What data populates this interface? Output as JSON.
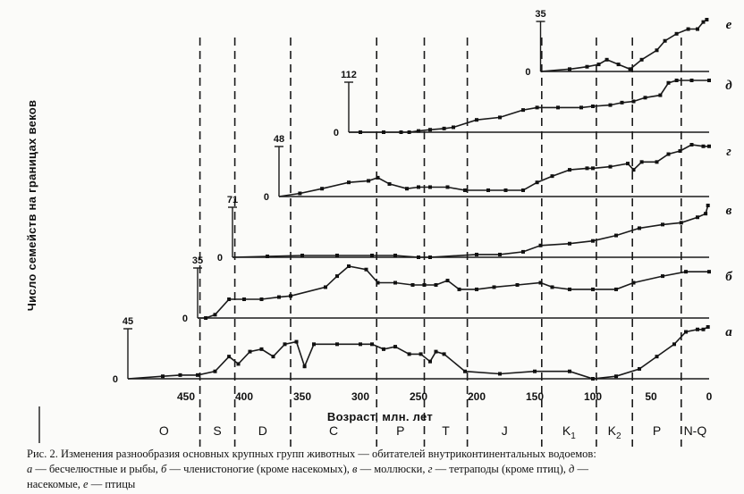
{
  "chart_data": {
    "type": "line",
    "xlabel": "Возраст, млн. лет",
    "ylabel": "Число семейств на границах веков",
    "xlim": [
      500,
      0
    ],
    "x_ticks": [
      450,
      400,
      350,
      300,
      250,
      200,
      150,
      100,
      50,
      0
    ],
    "x_tick_labels": [
      "450",
      "400",
      "350",
      "300",
      "250",
      "200",
      "150",
      "100",
      "50",
      "0"
    ],
    "periods": [
      {
        "label": "O",
        "sub": "",
        "start": 500,
        "end": 438
      },
      {
        "label": "S",
        "sub": "",
        "start": 438,
        "end": 408
      },
      {
        "label": "D",
        "sub": "",
        "start": 408,
        "end": 360
      },
      {
        "label": "C",
        "sub": "",
        "start": 360,
        "end": 286
      },
      {
        "label": "P",
        "sub": "",
        "start": 286,
        "end": 245
      },
      {
        "label": "T",
        "sub": "",
        "start": 245,
        "end": 208
      },
      {
        "label": "J",
        "sub": "",
        "start": 208,
        "end": 144
      },
      {
        "label": "K",
        "sub": "1",
        "start": 144,
        "end": 97
      },
      {
        "label": "K",
        "sub": "2",
        "start": 97,
        "end": 66
      },
      {
        "label": "P",
        "sub": "",
        "start": 66,
        "end": 24
      },
      {
        "label": "N-Q",
        "sub": "",
        "start": 24,
        "end": 0
      }
    ],
    "boundaries": [
      438,
      408,
      360,
      286,
      245,
      208,
      144,
      97,
      66,
      24
    ],
    "series": [
      {
        "letter": "а",
        "max": 45,
        "zero": "0",
        "points": [
          [
            500,
            0
          ],
          [
            470,
            2
          ],
          [
            455,
            3
          ],
          [
            440,
            3
          ],
          [
            425,
            6
          ],
          [
            413,
            18
          ],
          [
            405,
            12
          ],
          [
            395,
            22
          ],
          [
            385,
            24
          ],
          [
            375,
            18
          ],
          [
            365,
            28
          ],
          [
            355,
            30
          ],
          [
            348,
            10
          ],
          [
            340,
            28
          ],
          [
            320,
            28
          ],
          [
            300,
            28
          ],
          [
            290,
            28
          ],
          [
            280,
            24
          ],
          [
            270,
            26
          ],
          [
            258,
            20
          ],
          [
            248,
            20
          ],
          [
            240,
            14
          ],
          [
            235,
            22
          ],
          [
            228,
            20
          ],
          [
            210,
            6
          ],
          [
            180,
            4
          ],
          [
            150,
            6
          ],
          [
            120,
            6
          ],
          [
            100,
            0
          ],
          [
            80,
            2
          ],
          [
            60,
            8
          ],
          [
            45,
            18
          ],
          [
            30,
            28
          ],
          [
            20,
            38
          ],
          [
            10,
            40
          ],
          [
            5,
            40
          ],
          [
            1,
            42
          ]
        ]
      },
      {
        "letter": "б",
        "max": 35,
        "zero": "0",
        "points": [
          [
            440,
            0
          ],
          [
            433,
            0
          ],
          [
            425,
            3
          ],
          [
            413,
            17
          ],
          [
            400,
            17
          ],
          [
            385,
            17
          ],
          [
            370,
            19
          ],
          [
            360,
            20
          ],
          [
            330,
            28
          ],
          [
            320,
            38
          ],
          [
            310,
            47
          ],
          [
            295,
            44
          ],
          [
            285,
            32
          ],
          [
            270,
            32
          ],
          [
            255,
            30
          ],
          [
            245,
            30
          ],
          [
            235,
            30
          ],
          [
            225,
            34
          ],
          [
            215,
            26
          ],
          [
            200,
            26
          ],
          [
            185,
            28
          ],
          [
            165,
            30
          ],
          [
            145,
            32
          ],
          [
            135,
            28
          ],
          [
            120,
            26
          ],
          [
            100,
            26
          ],
          [
            80,
            26
          ],
          [
            65,
            32
          ],
          [
            40,
            38
          ],
          [
            20,
            42
          ],
          [
            0,
            42
          ]
        ]
      },
      {
        "letter": "в",
        "max": 71,
        "zero": "0",
        "points": [
          [
            410,
            0
          ],
          [
            380,
            1
          ],
          [
            350,
            2
          ],
          [
            320,
            2
          ],
          [
            290,
            2
          ],
          [
            270,
            2
          ],
          [
            250,
            0
          ],
          [
            240,
            0
          ],
          [
            200,
            3
          ],
          [
            180,
            3
          ],
          [
            160,
            6
          ],
          [
            145,
            13
          ],
          [
            120,
            15
          ],
          [
            100,
            18
          ],
          [
            80,
            24
          ],
          [
            60,
            32
          ],
          [
            40,
            36
          ],
          [
            24,
            38
          ],
          [
            10,
            44
          ],
          [
            3,
            48
          ],
          [
            1,
            57
          ]
        ]
      },
      {
        "letter": "г",
        "max": 48,
        "zero": "0",
        "points": [
          [
            370,
            0
          ],
          [
            352,
            2
          ],
          [
            333,
            5
          ],
          [
            310,
            9
          ],
          [
            293,
            10
          ],
          [
            285,
            12
          ],
          [
            275,
            8
          ],
          [
            260,
            5
          ],
          [
            250,
            6
          ],
          [
            240,
            6
          ],
          [
            225,
            6
          ],
          [
            210,
            4
          ],
          [
            190,
            4
          ],
          [
            175,
            4
          ],
          [
            160,
            4
          ],
          [
            148,
            9
          ],
          [
            135,
            13
          ],
          [
            120,
            17
          ],
          [
            105,
            18
          ],
          [
            100,
            18
          ],
          [
            85,
            19
          ],
          [
            70,
            21
          ],
          [
            65,
            17
          ],
          [
            58,
            22
          ],
          [
            45,
            22
          ],
          [
            35,
            27
          ],
          [
            25,
            29
          ],
          [
            15,
            33
          ],
          [
            5,
            32
          ],
          [
            0,
            32
          ]
        ]
      },
      {
        "letter": "д",
        "max": 112,
        "zero": "0",
        "points": [
          [
            310,
            0
          ],
          [
            300,
            0
          ],
          [
            280,
            0
          ],
          [
            265,
            0
          ],
          [
            258,
            0
          ],
          [
            250,
            1
          ],
          [
            240,
            2
          ],
          [
            228,
            3
          ],
          [
            220,
            4
          ],
          [
            200,
            10
          ],
          [
            180,
            12
          ],
          [
            160,
            18
          ],
          [
            148,
            20
          ],
          [
            130,
            20
          ],
          [
            110,
            20
          ],
          [
            100,
            21
          ],
          [
            85,
            22
          ],
          [
            75,
            24
          ],
          [
            65,
            25
          ],
          [
            55,
            28
          ],
          [
            42,
            30
          ],
          [
            35,
            40
          ],
          [
            28,
            42
          ],
          [
            15,
            42
          ],
          [
            0,
            42
          ]
        ]
      },
      {
        "letter": "е",
        "max": 35,
        "zero": "0",
        "points": [
          [
            145,
            0
          ],
          [
            120,
            1
          ],
          [
            105,
            2
          ],
          [
            95,
            3
          ],
          [
            88,
            5
          ],
          [
            78,
            3
          ],
          [
            68,
            1
          ],
          [
            58,
            5
          ],
          [
            45,
            9
          ],
          [
            38,
            13
          ],
          [
            28,
            16
          ],
          [
            18,
            18
          ],
          [
            10,
            18
          ],
          [
            5,
            21
          ],
          [
            2,
            22
          ]
        ]
      }
    ]
  },
  "caption": {
    "line1": "Рис. 2. Изменения разнообразия основных крупных групп животных — обитателей внутриконтинентальных водоемов:",
    "line2": [
      {
        "text": "а",
        "italic": true
      },
      {
        "text": " — бесчелюстные и рыбы, ",
        "italic": false
      },
      {
        "text": "б",
        "italic": true
      },
      {
        "text": " — членистоногие (кроме насекомых), ",
        "italic": false
      },
      {
        "text": "в",
        "italic": true
      },
      {
        "text": " — моллюски, ",
        "italic": false
      },
      {
        "text": "г",
        "italic": true
      },
      {
        "text": " — тетраподы (кроме птиц), ",
        "italic": false
      },
      {
        "text": "д",
        "italic": true
      },
      {
        "text": " —",
        "italic": false
      }
    ],
    "line3": [
      {
        "text": "насекомые, ",
        "italic": false
      },
      {
        "text": "е",
        "italic": true
      },
      {
        "text": " — птицы",
        "italic": false
      }
    ]
  }
}
